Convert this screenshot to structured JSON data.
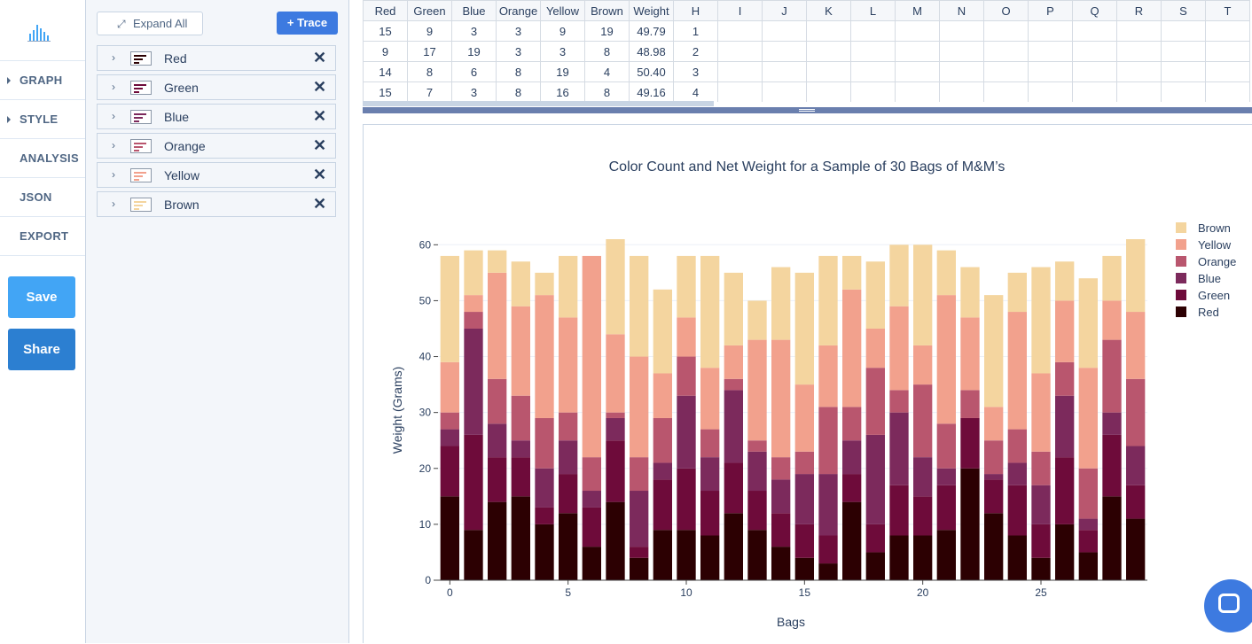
{
  "nav": {
    "items": [
      {
        "label": "GRAPH",
        "caret": true
      },
      {
        "label": "STYLE",
        "caret": true
      },
      {
        "label": "ANALYSIS",
        "caret": false
      },
      {
        "label": "JSON",
        "caret": false
      },
      {
        "label": "EXPORT",
        "caret": false
      }
    ],
    "save_label": "Save",
    "share_label": "Share"
  },
  "panel": {
    "expand_label": "Expand All",
    "trace_button_label": "+ Trace",
    "traces": [
      {
        "name": "Red",
        "color": "#2c0002"
      },
      {
        "name": "Green",
        "color": "#6e0b3a"
      },
      {
        "name": "Blue",
        "color": "#7c2a5c"
      },
      {
        "name": "Orange",
        "color": "#b9566e"
      },
      {
        "name": "Yellow",
        "color": "#f2a18d"
      },
      {
        "name": "Brown",
        "color": "#f4d59f"
      }
    ]
  },
  "grid": {
    "headers": [
      "Red",
      "Green",
      "Blue",
      "Orange",
      "Yellow",
      "Brown",
      "Weight",
      "H",
      "I",
      "J",
      "K",
      "L",
      "M",
      "N",
      "O",
      "P",
      "Q",
      "R",
      "S",
      "T"
    ],
    "rows": [
      [
        "15",
        "9",
        "3",
        "3",
        "9",
        "19",
        "49.79",
        "1"
      ],
      [
        "9",
        "17",
        "19",
        "3",
        "3",
        "8",
        "48.98",
        "2"
      ],
      [
        "14",
        "8",
        "6",
        "8",
        "19",
        "4",
        "50.40",
        "3"
      ],
      [
        "15",
        "7",
        "3",
        "8",
        "16",
        "8",
        "49.16",
        "4"
      ]
    ]
  },
  "chart_data": {
    "type": "bar",
    "barmode": "stack",
    "title": "Color Count and Net Weight for a Sample of 30 Bags of M&M’s",
    "xlabel": "Bags",
    "ylabel": "Weight (Grams)",
    "x": [
      0,
      1,
      2,
      3,
      4,
      5,
      6,
      7,
      8,
      9,
      10,
      11,
      12,
      13,
      14,
      15,
      16,
      17,
      18,
      19,
      20,
      21,
      22,
      23,
      24,
      25,
      26,
      27,
      28,
      29
    ],
    "xticks": [
      0,
      5,
      10,
      15,
      20,
      25
    ],
    "yticks": [
      0,
      10,
      20,
      30,
      40,
      50,
      60
    ],
    "ylim": [
      0,
      61
    ],
    "xlim": [
      -0.5,
      29.5
    ],
    "legend_position": "top-right",
    "grid": true,
    "series": [
      {
        "name": "Red",
        "color": "#2c0002",
        "values": [
          15,
          9,
          14,
          15,
          10,
          12,
          6,
          14,
          4,
          9,
          9,
          8,
          12,
          9,
          6,
          4,
          3,
          14,
          5,
          8,
          8,
          9,
          20,
          12,
          8,
          4,
          10,
          5,
          15,
          11
        ]
      },
      {
        "name": "Green",
        "color": "#6e0b3a",
        "values": [
          9,
          17,
          8,
          7,
          3,
          7,
          7,
          11,
          2,
          9,
          11,
          8,
          9,
          7,
          6,
          6,
          5,
          5,
          5,
          9,
          7,
          8,
          9,
          6,
          9,
          6,
          12,
          4,
          11,
          6
        ]
      },
      {
        "name": "Blue",
        "color": "#7c2a5c",
        "values": [
          3,
          19,
          6,
          3,
          7,
          6,
          3,
          4,
          10,
          3,
          13,
          6,
          13,
          7,
          6,
          9,
          11,
          6,
          16,
          13,
          7,
          3,
          0,
          1,
          4,
          7,
          11,
          2,
          4,
          7
        ]
      },
      {
        "name": "Orange",
        "color": "#b9566e",
        "values": [
          3,
          3,
          8,
          8,
          9,
          5,
          6,
          1,
          6,
          8,
          7,
          5,
          2,
          2,
          4,
          4,
          12,
          6,
          12,
          4,
          13,
          8,
          5,
          6,
          6,
          6,
          6,
          9,
          13,
          12
        ]
      },
      {
        "name": "Yellow",
        "color": "#f2a18d",
        "values": [
          9,
          3,
          19,
          16,
          22,
          17,
          36,
          14,
          18,
          8,
          7,
          11,
          6,
          18,
          21,
          12,
          11,
          21,
          7,
          15,
          7,
          23,
          13,
          6,
          21,
          14,
          11,
          18,
          7,
          12
        ]
      },
      {
        "name": "Brown",
        "color": "#f4d59f",
        "values": [
          19,
          8,
          4,
          8,
          4,
          11,
          0,
          17,
          18,
          15,
          11,
          20,
          13,
          7,
          13,
          20,
          16,
          6,
          12,
          11,
          18,
          8,
          9,
          20,
          7,
          19,
          7,
          16,
          8,
          13
        ]
      }
    ]
  }
}
